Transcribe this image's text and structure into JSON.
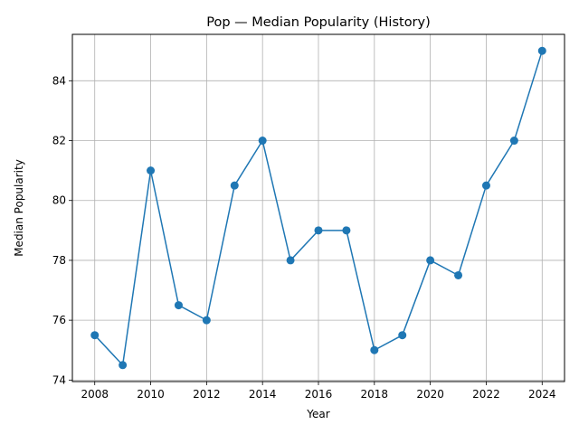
{
  "chart_data": {
    "type": "line",
    "title": "Pop — Median Popularity (History)",
    "xlabel": "Year",
    "ylabel": "Median Popularity",
    "x": [
      2008,
      2009,
      2010,
      2011,
      2012,
      2013,
      2014,
      2015,
      2016,
      2017,
      2018,
      2019,
      2020,
      2021,
      2022,
      2023,
      2024
    ],
    "series": [
      {
        "values": [
          75.5,
          74.5,
          81,
          76.5,
          76,
          80.5,
          82,
          78,
          79,
          79,
          75,
          75.5,
          78,
          77.5,
          80.5,
          82,
          85
        ],
        "color": "#1f77b4",
        "marker": "circle"
      }
    ],
    "xticks": [
      2008,
      2010,
      2012,
      2014,
      2016,
      2018,
      2020,
      2022,
      2024
    ],
    "yticks": [
      74,
      76,
      78,
      80,
      82,
      84
    ],
    "xlim": [
      2007.2,
      2024.8
    ],
    "ylim": [
      73.95,
      85.55
    ],
    "grid": true,
    "legend": "none"
  }
}
